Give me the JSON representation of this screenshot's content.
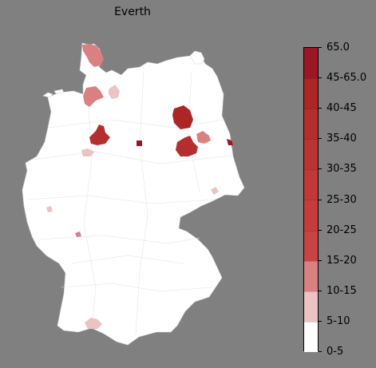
{
  "title": "Everth",
  "legend": {
    "labels": [
      "0-5",
      "5-10",
      "10-15",
      "15-20",
      "20-25",
      "25-30",
      "30-35",
      "35-40",
      "40-45",
      "45-65.0",
      "65.0"
    ],
    "bins": [
      {
        "label": "0-5",
        "color": "#ffffff"
      },
      {
        "label": "5-10",
        "color": "#ecc2c2"
      },
      {
        "label": "10-15",
        "color": "#d98080"
      },
      {
        "label": "15-20",
        "color": "#c84444"
      },
      {
        "label": "20-25",
        "color": "#c43c3c"
      },
      {
        "label": "25-30",
        "color": "#c03838"
      },
      {
        "label": "30-35",
        "color": "#bb3434"
      },
      {
        "label": "35-40",
        "color": "#b52e2e"
      },
      {
        "label": "40-45",
        "color": "#ad2626"
      },
      {
        "label": "45-65.0",
        "color": "#9c1626"
      }
    ]
  },
  "map": {
    "region_name": "Germany",
    "highlighted_regions": [
      {
        "name": "schleswig-north",
        "value_range": "10-15"
      },
      {
        "name": "hamburg-area",
        "value_range": "10-15"
      },
      {
        "name": "lueneburg",
        "value_range": "5-10"
      },
      {
        "name": "hannover",
        "value_range": "35-40"
      },
      {
        "name": "bielefeld",
        "value_range": "5-10"
      },
      {
        "name": "magdeburg-area",
        "value_range": "45-65.0"
      },
      {
        "name": "brandenburg-north",
        "value_range": "40-45"
      },
      {
        "name": "berlin-east",
        "value_range": "10-15"
      },
      {
        "name": "brandenburg-south",
        "value_range": "35-40"
      },
      {
        "name": "frankfurt-oder",
        "value_range": "45-65.0"
      },
      {
        "name": "dresden",
        "value_range": "5-10"
      },
      {
        "name": "saarbruecken-area",
        "value_range": "5-10"
      },
      {
        "name": "mannheim",
        "value_range": "10-15"
      },
      {
        "name": "lake-constance",
        "value_range": "10-15"
      }
    ]
  }
}
